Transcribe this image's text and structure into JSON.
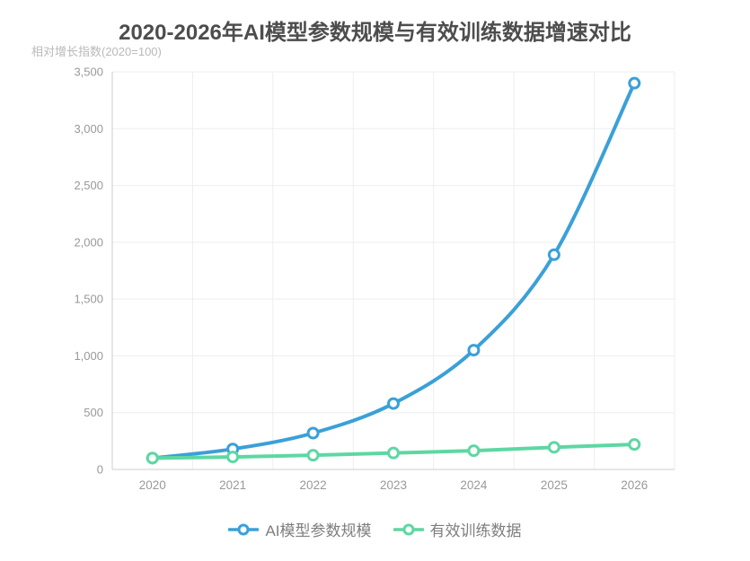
{
  "header": {
    "title": "2020-2026年AI模型参数规模与有效训练数据增速对比"
  },
  "chart_data": {
    "type": "line",
    "title": "2020-2026年AI模型参数规模与有效训练数据增速对比",
    "y_axis_name": "相对增长指数(2020=100)",
    "xlabel": "",
    "ylabel": "相对增长指数(2020=100)",
    "categories": [
      "2020",
      "2021",
      "2022",
      "2023",
      "2024",
      "2025",
      "2026"
    ],
    "series": [
      {
        "name": "AI模型参数规模",
        "color": "#3aa0d8",
        "values": [
          100,
          180,
          320,
          580,
          1050,
          1890,
          3400
        ]
      },
      {
        "name": "有效训练数据",
        "color": "#5ed7a3",
        "values": [
          100,
          110,
          125,
          145,
          165,
          195,
          220
        ]
      }
    ],
    "ylim": [
      0,
      3500
    ],
    "y_ticks": [
      0,
      500,
      1000,
      1500,
      2000,
      2500,
      3000,
      3500
    ],
    "y_tick_labels": [
      "0",
      "500",
      "1,000",
      "1,500",
      "2,000",
      "2,500",
      "3,000",
      "3,500"
    ],
    "grid": true,
    "smooth": true,
    "marker": "hollow-circle",
    "legend_position": "bottom",
    "colors": {
      "title": "#4d4d4d",
      "axis_line": "#cccccc",
      "grid_line": "#eeeeee",
      "tick_label": "#999999",
      "axis_name": "#b9b9b9",
      "legend_text": "#7e7e7e",
      "background": "#ffffff"
    }
  }
}
